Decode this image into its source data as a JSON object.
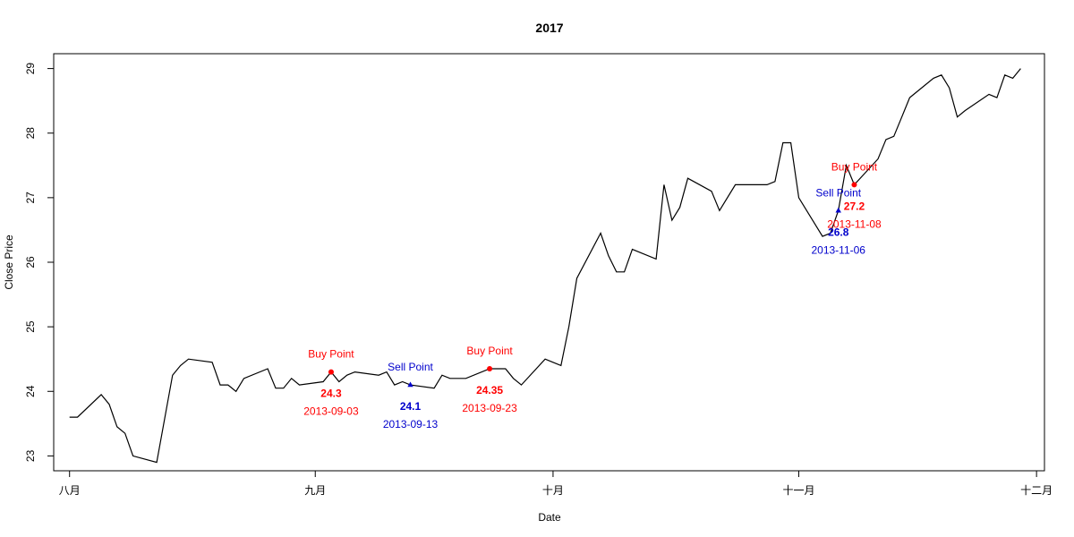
{
  "chart_data": {
    "type": "line",
    "title": "2017",
    "xlabel": "Date",
    "ylabel": "Close Price",
    "xlim": [
      "2013-07-30",
      "2013-12-02"
    ],
    "ylim": [
      22.77,
      29.23
    ],
    "grid": false,
    "x_ticks": [
      {
        "date": "2013-08-01",
        "label": "八月"
      },
      {
        "date": "2013-09-01",
        "label": "九月"
      },
      {
        "date": "2013-10-01",
        "label": "十月"
      },
      {
        "date": "2013-11-01",
        "label": "十一月"
      },
      {
        "date": "2013-12-01",
        "label": "十二月"
      }
    ],
    "y_ticks": [
      23,
      24,
      25,
      26,
      27,
      28,
      29
    ],
    "series": [
      {
        "color": "#000000",
        "points": [
          [
            "2013-08-01",
            23.6
          ],
          [
            "2013-08-02",
            23.6
          ],
          [
            "2013-08-05",
            23.95
          ],
          [
            "2013-08-06",
            23.8
          ],
          [
            "2013-08-07",
            23.45
          ],
          [
            "2013-08-08",
            23.35
          ],
          [
            "2013-08-09",
            23.0
          ],
          [
            "2013-08-12",
            22.9
          ],
          [
            "2013-08-14",
            24.25
          ],
          [
            "2013-08-15",
            24.4
          ],
          [
            "2013-08-16",
            24.5
          ],
          [
            "2013-08-19",
            24.45
          ],
          [
            "2013-08-20",
            24.1
          ],
          [
            "2013-08-21",
            24.1
          ],
          [
            "2013-08-22",
            24.0
          ],
          [
            "2013-08-23",
            24.2
          ],
          [
            "2013-08-26",
            24.35
          ],
          [
            "2013-08-27",
            24.05
          ],
          [
            "2013-08-28",
            24.05
          ],
          [
            "2013-08-29",
            24.2
          ],
          [
            "2013-08-30",
            24.1
          ],
          [
            "2013-09-02",
            24.15
          ],
          [
            "2013-09-03",
            24.3
          ],
          [
            "2013-09-04",
            24.15
          ],
          [
            "2013-09-05",
            24.25
          ],
          [
            "2013-09-06",
            24.3
          ],
          [
            "2013-09-09",
            24.25
          ],
          [
            "2013-09-10",
            24.3
          ],
          [
            "2013-09-11",
            24.1
          ],
          [
            "2013-09-12",
            24.15
          ],
          [
            "2013-09-13",
            24.1
          ],
          [
            "2013-09-16",
            24.05
          ],
          [
            "2013-09-17",
            24.25
          ],
          [
            "2013-09-18",
            24.2
          ],
          [
            "2013-09-20",
            24.2
          ],
          [
            "2013-09-23",
            24.35
          ],
          [
            "2013-09-24",
            24.35
          ],
          [
            "2013-09-25",
            24.35
          ],
          [
            "2013-09-26",
            24.2
          ],
          [
            "2013-09-27",
            24.1
          ],
          [
            "2013-09-30",
            24.5
          ],
          [
            "2013-10-01",
            24.45
          ],
          [
            "2013-10-02",
            24.4
          ],
          [
            "2013-10-03",
            25.0
          ],
          [
            "2013-10-04",
            25.75
          ],
          [
            "2013-10-07",
            26.45
          ],
          [
            "2013-10-08",
            26.1
          ],
          [
            "2013-10-09",
            25.85
          ],
          [
            "2013-10-10",
            25.85
          ],
          [
            "2013-10-11",
            26.2
          ],
          [
            "2013-10-14",
            26.05
          ],
          [
            "2013-10-15",
            27.2
          ],
          [
            "2013-10-16",
            26.65
          ],
          [
            "2013-10-17",
            26.85
          ],
          [
            "2013-10-18",
            27.3
          ],
          [
            "2013-10-21",
            27.1
          ],
          [
            "2013-10-22",
            26.8
          ],
          [
            "2013-10-24",
            27.2
          ],
          [
            "2013-10-28",
            27.2
          ],
          [
            "2013-10-29",
            27.25
          ],
          [
            "2013-10-30",
            27.85
          ],
          [
            "2013-10-31",
            27.85
          ],
          [
            "2013-11-01",
            27.0
          ],
          [
            "2013-11-04",
            26.4
          ],
          [
            "2013-11-05",
            26.45
          ],
          [
            "2013-11-06",
            26.8
          ],
          [
            "2013-11-07",
            27.5
          ],
          [
            "2013-11-08",
            27.2
          ],
          [
            "2013-11-11",
            27.6
          ],
          [
            "2013-11-12",
            27.9
          ],
          [
            "2013-11-13",
            27.95
          ],
          [
            "2013-11-14",
            28.25
          ],
          [
            "2013-11-15",
            28.55
          ],
          [
            "2013-11-18",
            28.85
          ],
          [
            "2013-11-19",
            28.9
          ],
          [
            "2013-11-20",
            28.7
          ],
          [
            "2013-11-21",
            28.25
          ],
          [
            "2013-11-22",
            28.35
          ],
          [
            "2013-11-25",
            28.6
          ],
          [
            "2013-11-26",
            28.55
          ],
          [
            "2013-11-27",
            28.9
          ],
          [
            "2013-11-28",
            28.85
          ],
          [
            "2013-11-29",
            29.0
          ]
        ]
      }
    ],
    "annotations": [
      {
        "kind": "buy",
        "date": "2013-09-03",
        "price": 24.3,
        "label": "Buy Point",
        "price_text": "24.3",
        "date_text": "2013-09-03",
        "color": "#ff0000",
        "marker": "circle"
      },
      {
        "kind": "sell",
        "date": "2013-09-13",
        "price": 24.1,
        "label": "Sell Point",
        "price_text": "24.1",
        "date_text": "2013-09-13",
        "color": "#0000cc",
        "marker": "triangle"
      },
      {
        "kind": "buy",
        "date": "2013-09-23",
        "price": 24.35,
        "label": "Buy Point",
        "price_text": "24.35",
        "date_text": "2013-09-23",
        "color": "#ff0000",
        "marker": "circle"
      },
      {
        "kind": "sell",
        "date": "2013-11-06",
        "price": 26.8,
        "label": "Sell Point",
        "price_text": "26.8",
        "date_text": "2013-11-06",
        "color": "#0000cc",
        "marker": "triangle"
      },
      {
        "kind": "buy",
        "date": "2013-11-08",
        "price": 27.2,
        "label": "Buy Point",
        "price_text": "27.2",
        "date_text": "2013-11-08",
        "color": "#ff0000",
        "marker": "circle"
      }
    ]
  }
}
